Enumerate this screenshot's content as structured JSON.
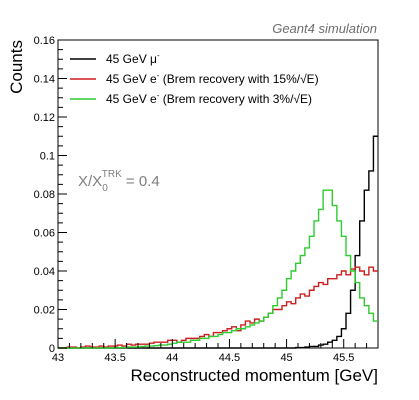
{
  "chart_data": {
    "type": "line",
    "step": true,
    "title": "",
    "top_label": "Geant4 simulation",
    "xlabel": "Reconstructed momentum [GeV]",
    "ylabel": "Counts",
    "xlim": [
      43,
      45.8
    ],
    "ylim": [
      0,
      0.16
    ],
    "x_ticks": [
      43,
      43.5,
      44,
      44.5,
      45,
      45.5
    ],
    "x_tick_labels": [
      "43",
      "43.5",
      "44",
      "44.5",
      "45",
      "45.5"
    ],
    "y_ticks": [
      0,
      0.02,
      0.04,
      0.06,
      0.08,
      0.1,
      0.12,
      0.14,
      0.16
    ],
    "y_tick_labels": [
      "0",
      "0.02",
      "0.04",
      "0.06",
      "0.08",
      "0.1",
      "0.12",
      "0.14",
      "0.16"
    ],
    "annotation": {
      "text": "X/X",
      "sub": "0",
      "sup": "TRK",
      "value": " = 0.4"
    },
    "legend_position": "top-left",
    "bin_width": 0.04,
    "x_start": 43,
    "series": [
      {
        "name": "45 GeV μ",
        "name_sup": "-",
        "name_tail": "",
        "color": "#000000",
        "values": [
          0,
          0,
          0,
          0,
          0,
          0,
          0,
          0,
          0,
          0,
          0,
          0,
          0,
          0,
          0,
          0,
          0,
          0,
          0,
          0,
          0,
          0,
          0,
          0,
          0,
          0,
          0,
          0,
          0,
          0,
          0,
          0,
          0,
          0,
          0,
          0,
          0,
          0,
          0,
          0,
          0,
          0,
          0,
          0,
          0,
          0,
          0,
          0,
          0,
          0,
          0,
          0,
          0.0002,
          0.0002,
          0.0005,
          0.0008,
          0.0008,
          0.0015,
          0.002,
          0.003,
          0.004,
          0.006,
          0.01,
          0.018,
          0.03,
          0.048,
          0.066,
          0.082,
          0.092,
          0.11,
          0.116,
          0.112,
          0.098,
          0.079,
          0.058,
          0.042,
          0.03,
          0.019,
          0.012,
          0.008,
          0.006,
          0.004,
          0.003,
          0.002,
          0.002,
          0.0015,
          0.001,
          0.001,
          0.0008,
          0.0005,
          0.0005,
          0.0003,
          0.0002,
          0.0002,
          0.0001,
          0,
          0,
          0,
          0,
          0
        ]
      },
      {
        "name": "45 GeV e",
        "name_sup": "-",
        "name_tail": " (Brem recovery with 15%/√E)",
        "color": "#cc1f1f",
        "values": [
          0,
          0,
          0.0005,
          0.0005,
          0,
          0.0005,
          0.001,
          0.0005,
          0.0005,
          0.001,
          0.0005,
          0.001,
          0.001,
          0.0015,
          0.001,
          0.002,
          0.0015,
          0.002,
          0.002,
          0.002,
          0.0025,
          0.003,
          0.003,
          0.003,
          0.004,
          0.004,
          0.003,
          0.004,
          0.005,
          0.005,
          0.005,
          0.006,
          0.007,
          0.006,
          0.008,
          0.008,
          0.009,
          0.01,
          0.011,
          0.009,
          0.012,
          0.014,
          0.013,
          0.015,
          0.014,
          0.016,
          0.018,
          0.02,
          0.02,
          0.022,
          0.024,
          0.023,
          0.026,
          0.028,
          0.027,
          0.03,
          0.032,
          0.034,
          0.033,
          0.036,
          0.036,
          0.038,
          0.04,
          0.038,
          0.041,
          0.042,
          0.04,
          0.038,
          0.042,
          0.04,
          0.036,
          0.035,
          0.034,
          0.03,
          0.03,
          0.026,
          0.024,
          0.022,
          0.02,
          0.02,
          0.016,
          0.014,
          0.014,
          0.012,
          0.012,
          0.01,
          0.01,
          0.008,
          0.008,
          0.008,
          0.007,
          0.006,
          0.006,
          0.005,
          0.005,
          0.004,
          0.004,
          0.004,
          0.003,
          0.004
        ]
      },
      {
        "name": "45 GeV e",
        "name_sup": "-",
        "name_tail": " (Brem recovery with 3%/√E)",
        "color": "#2ecc2e",
        "values": [
          0,
          0,
          0,
          0,
          0,
          0,
          0,
          0,
          0,
          0,
          0,
          0,
          0.0002,
          0.0002,
          0.0002,
          0.0005,
          0.0005,
          0.0005,
          0.0008,
          0.001,
          0.001,
          0.0012,
          0.0015,
          0.0015,
          0.002,
          0.0025,
          0.003,
          0.003,
          0.003,
          0.004,
          0.004,
          0.005,
          0.005,
          0.006,
          0.006,
          0.007,
          0.008,
          0.008,
          0.009,
          0.01,
          0.01,
          0.011,
          0.012,
          0.013,
          0.014,
          0.016,
          0.018,
          0.022,
          0.026,
          0.03,
          0.036,
          0.04,
          0.044,
          0.048,
          0.052,
          0.058,
          0.066,
          0.072,
          0.082,
          0.082,
          0.074,
          0.066,
          0.058,
          0.048,
          0.04,
          0.034,
          0.026,
          0.022,
          0.018,
          0.014,
          0.012,
          0.01,
          0.008,
          0.007,
          0.006,
          0.005,
          0.004,
          0.003,
          0.003,
          0.002,
          0.002,
          0.0015,
          0.001,
          0.001,
          0.001,
          0.0008,
          0.0005,
          0.0005,
          0.0003,
          0.0002,
          0.0002,
          0,
          0,
          0,
          0,
          0,
          0,
          0,
          0,
          0
        ]
      }
    ]
  }
}
